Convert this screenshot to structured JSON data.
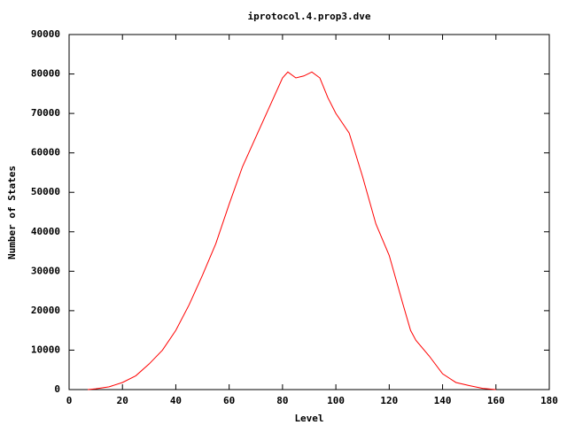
{
  "chart_data": {
    "type": "line",
    "title": "iprotocol.4.prop3.dve",
    "x_label": "Level",
    "y_label": "Number of States",
    "x": [
      7,
      10,
      15,
      20,
      25,
      30,
      35,
      40,
      45,
      50,
      55,
      60,
      65,
      70,
      75,
      80,
      82,
      85,
      88,
      91,
      94,
      97,
      100,
      105,
      110,
      115,
      120,
      125,
      128,
      130,
      135,
      140,
      145,
      150,
      155,
      160
    ],
    "series": [
      {
        "color": "#ff0000",
        "values": [
          0,
          200,
          700,
          1800,
          3500,
          6500,
          10000,
          15000,
          21500,
          29000,
          37000,
          47000,
          56500,
          64000,
          71500,
          79000,
          80500,
          79000,
          79500,
          80500,
          79000,
          74000,
          70000,
          65000,
          54000,
          42000,
          34000,
          22000,
          15000,
          12500,
          8500,
          4000,
          1800,
          1000,
          300,
          0
        ]
      }
    ],
    "xlim": [
      0,
      180
    ],
    "xticks": [
      0,
      20,
      40,
      60,
      80,
      100,
      120,
      140,
      160,
      180
    ],
    "ylim": [
      0,
      90000
    ],
    "yticks": [
      0,
      10000,
      20000,
      30000,
      40000,
      50000,
      60000,
      70000,
      80000,
      90000
    ],
    "grid": false
  }
}
